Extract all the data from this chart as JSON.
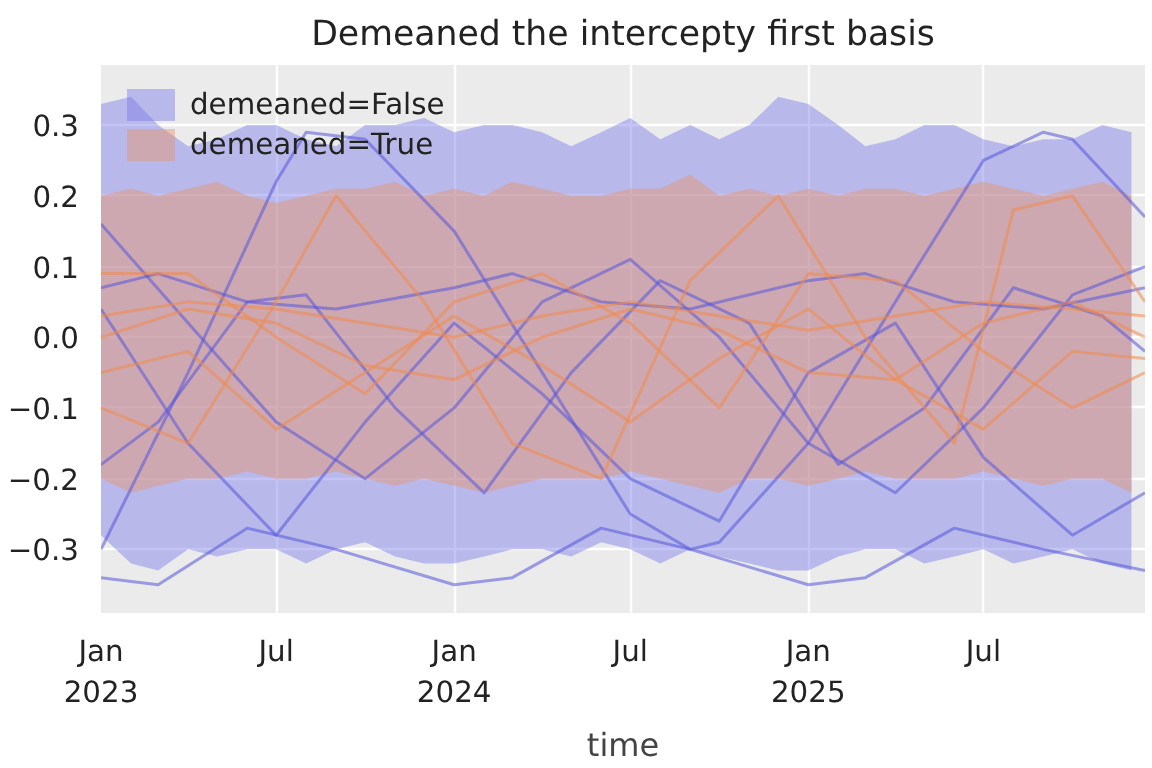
{
  "chart_data": {
    "type": "line",
    "title": "Demeaned the intercepty first basis",
    "xlabel": "time",
    "x": [
      "2023-01",
      "2023-02",
      "2023-03",
      "2023-04",
      "2023-05",
      "2023-06",
      "2023-07",
      "2023-08",
      "2023-09",
      "2023-10",
      "2023-11",
      "2023-12",
      "2024-01",
      "2024-02",
      "2024-03",
      "2024-04",
      "2024-05",
      "2024-06",
      "2024-07",
      "2024-08",
      "2024-09",
      "2024-10",
      "2024-11",
      "2024-12",
      "2025-01",
      "2025-02",
      "2025-03",
      "2025-04",
      "2025-05",
      "2025-06",
      "2025-07",
      "2025-08",
      "2025-09",
      "2025-10",
      "2025-11",
      "2025-12"
    ],
    "xlim": [
      "2023-01-01",
      "2025-12-15"
    ],
    "xticks": [
      {
        "value": "2023-01",
        "label": "Jan\n2023"
      },
      {
        "value": "2023-07",
        "label": "Jul"
      },
      {
        "value": "2024-01",
        "label": "Jan\n2024"
      },
      {
        "value": "2024-07",
        "label": "Jul"
      },
      {
        "value": "2025-01",
        "label": "Jan\n2025"
      },
      {
        "value": "2025-07",
        "label": "Jul"
      }
    ],
    "ylim": [
      -0.39,
      0.385
    ],
    "yticks": [
      -0.3,
      -0.2,
      -0.1,
      {
        "value": 0,
        "label": "0.0"
      },
      0.1,
      0.2,
      0.3
    ],
    "grid": true,
    "legend": "top left",
    "series": [
      {
        "name": "demeaned=False",
        "type": "area",
        "color": "#7b7be8",
        "values": [
          null,
          null,
          null,
          null,
          null,
          null,
          null,
          null,
          null,
          null,
          null,
          null,
          null,
          null,
          null,
          null,
          null,
          null,
          null,
          null,
          null,
          null,
          null,
          null,
          null,
          null,
          null,
          null,
          null,
          null,
          null,
          null,
          null,
          null,
          null,
          null
        ],
        "lower": [
          -0.28,
          -0.32,
          -0.33,
          -0.3,
          -0.31,
          -0.3,
          -0.3,
          -0.32,
          -0.3,
          -0.29,
          -0.31,
          -0.32,
          -0.32,
          -0.31,
          -0.3,
          -0.3,
          -0.31,
          -0.29,
          -0.3,
          -0.32,
          -0.3,
          -0.31,
          -0.32,
          -0.33,
          -0.33,
          -0.31,
          -0.3,
          -0.3,
          -0.32,
          -0.31,
          -0.3,
          -0.32,
          -0.31,
          -0.3,
          -0.32,
          -0.33
        ],
        "upper": [
          0.33,
          0.34,
          0.3,
          0.27,
          0.28,
          0.3,
          0.3,
          0.28,
          0.27,
          0.3,
          0.3,
          0.31,
          0.29,
          0.3,
          0.3,
          0.29,
          0.27,
          0.29,
          0.31,
          0.28,
          0.3,
          0.28,
          0.3,
          0.34,
          0.33,
          0.3,
          0.27,
          0.28,
          0.3,
          0.3,
          0.28,
          0.27,
          0.28,
          0.28,
          0.3,
          0.29
        ]
      },
      {
        "name": "demeaned=True",
        "type": "area",
        "color": "#e8956a",
        "values": [
          null,
          null,
          null,
          null,
          null,
          null,
          null,
          null,
          null,
          null,
          null,
          null,
          null,
          null,
          null,
          null,
          null,
          null,
          null,
          null,
          null,
          null,
          null,
          null,
          null,
          null,
          null,
          null,
          null,
          null,
          null,
          null,
          null,
          null,
          null,
          null
        ],
        "lower": [
          -0.2,
          -0.22,
          -0.21,
          -0.2,
          -0.2,
          -0.19,
          -0.2,
          -0.2,
          -0.19,
          -0.2,
          -0.21,
          -0.2,
          -0.21,
          -0.22,
          -0.21,
          -0.2,
          -0.2,
          -0.2,
          -0.19,
          -0.2,
          -0.21,
          -0.22,
          -0.2,
          -0.2,
          -0.21,
          -0.2,
          -0.19,
          -0.2,
          -0.2,
          -0.2,
          -0.19,
          -0.2,
          -0.21,
          -0.2,
          -0.2,
          -0.22
        ],
        "upper": [
          0.2,
          0.21,
          0.2,
          0.21,
          0.22,
          0.2,
          0.19,
          0.2,
          0.21,
          0.21,
          0.22,
          0.2,
          0.21,
          0.2,
          0.22,
          0.21,
          0.2,
          0.2,
          0.21,
          0.21,
          0.23,
          0.2,
          0.21,
          0.2,
          0.21,
          0.2,
          0.21,
          0.21,
          0.2,
          0.21,
          0.22,
          0.21,
          0.2,
          0.21,
          0.22,
          0.2
        ]
      },
      {
        "color": "#5555dd",
        "x": [
          "2023-01",
          "2023-04",
          "2023-07",
          "2023-08",
          "2023-10",
          "2024-01",
          "2024-04",
          "2024-07",
          "2024-09",
          "2024-10",
          "2025-01",
          "2025-04",
          "2025-07",
          "2025-09",
          "2025-10",
          "2025-12-15"
        ],
        "values": [
          -0.3,
          -0.05,
          0.22,
          0.29,
          0.28,
          0.15,
          -0.05,
          -0.25,
          -0.3,
          -0.29,
          -0.15,
          0.05,
          0.25,
          0.29,
          0.28,
          0.17
        ]
      },
      {
        "color": "#5555dd",
        "x": [
          "2023-01",
          "2023-04",
          "2023-07",
          "2023-10",
          "2024-01",
          "2024-04",
          "2024-07",
          "2024-10",
          "2025-01",
          "2025-04",
          "2025-07",
          "2025-10",
          "2025-12-15"
        ],
        "values": [
          0.16,
          0.02,
          -0.12,
          -0.2,
          -0.1,
          0.05,
          0.11,
          0.0,
          -0.15,
          -0.22,
          -0.1,
          0.06,
          0.1
        ]
      },
      {
        "color": "#5555dd",
        "x": [
          "2023-01",
          "2023-03",
          "2023-06",
          "2023-09",
          "2024-01",
          "2024-03",
          "2024-06",
          "2024-09",
          "2025-01",
          "2025-03",
          "2025-06",
          "2025-09",
          "2025-12-15"
        ],
        "values": [
          0.07,
          0.09,
          0.05,
          0.04,
          0.07,
          0.09,
          0.05,
          0.04,
          0.08,
          0.09,
          0.05,
          0.04,
          0.07
        ]
      },
      {
        "color": "#5555dd",
        "x": [
          "2023-01",
          "2023-03",
          "2023-06",
          "2023-09",
          "2024-01",
          "2024-03",
          "2024-06",
          "2024-09",
          "2025-01",
          "2025-03",
          "2025-06",
          "2025-09",
          "2025-12-15"
        ],
        "values": [
          -0.34,
          -0.35,
          -0.27,
          -0.3,
          -0.35,
          -0.34,
          -0.27,
          -0.3,
          -0.35,
          -0.34,
          -0.27,
          -0.3,
          -0.33
        ]
      },
      {
        "color": "#5555dd",
        "x": [
          "2023-01",
          "2023-03",
          "2023-06",
          "2023-08",
          "2023-11",
          "2024-02",
          "2024-05",
          "2024-08",
          "2024-11",
          "2025-02",
          "2025-05",
          "2025-08",
          "2025-11",
          "2025-12-15"
        ],
        "values": [
          -0.18,
          -0.12,
          0.05,
          0.06,
          -0.1,
          -0.22,
          -0.05,
          0.08,
          0.02,
          -0.18,
          -0.1,
          0.07,
          0.03,
          -0.02
        ]
      },
      {
        "color": "#5555dd",
        "x": [
          "2023-01",
          "2023-04",
          "2023-07",
          "2023-10",
          "2024-01",
          "2024-04",
          "2024-07",
          "2024-10",
          "2025-01",
          "2025-04",
          "2025-07",
          "2025-10",
          "2025-12-15"
        ],
        "values": [
          0.04,
          -0.15,
          -0.28,
          -0.12,
          0.02,
          -0.08,
          -0.2,
          -0.26,
          -0.05,
          0.02,
          -0.17,
          -0.28,
          -0.22
        ]
      },
      {
        "color": "#f08a4b",
        "x": [
          "2023-01",
          "2023-04",
          "2023-07",
          "2023-09",
          "2023-12",
          "2024-03",
          "2024-06",
          "2024-09",
          "2024-12",
          "2025-03",
          "2025-06",
          "2025-08",
          "2025-10",
          "2025-12-15"
        ],
        "values": [
          -0.1,
          -0.15,
          0.05,
          0.2,
          0.05,
          -0.15,
          -0.2,
          0.08,
          0.2,
          0.0,
          -0.15,
          0.18,
          0.2,
          0.05
        ]
      },
      {
        "color": "#f08a4b",
        "x": [
          "2023-01",
          "2023-04",
          "2023-07",
          "2023-10",
          "2024-01",
          "2024-04",
          "2024-07",
          "2024-10",
          "2025-01",
          "2025-04",
          "2025-07",
          "2025-10",
          "2025-12-15"
        ],
        "values": [
          0.03,
          0.05,
          0.04,
          0.02,
          0.0,
          0.03,
          0.05,
          0.03,
          0.01,
          0.03,
          0.05,
          0.04,
          0.03
        ]
      },
      {
        "color": "#f08a4b",
        "x": [
          "2023-01",
          "2023-04",
          "2023-07",
          "2023-10",
          "2024-01",
          "2024-04",
          "2024-07",
          "2024-10",
          "2025-01",
          "2025-04",
          "2025-07",
          "2025-10",
          "2025-12-15"
        ],
        "values": [
          0.09,
          0.09,
          0.0,
          -0.08,
          0.05,
          0.09,
          0.02,
          -0.1,
          0.09,
          0.08,
          -0.02,
          -0.1,
          -0.05
        ]
      },
      {
        "color": "#f08a4b",
        "x": [
          "2023-01",
          "2023-04",
          "2023-07",
          "2023-10",
          "2024-01",
          "2024-04",
          "2024-07",
          "2024-10",
          "2025-01",
          "2025-04",
          "2025-07",
          "2025-10",
          "2025-12-15"
        ],
        "values": [
          -0.05,
          -0.02,
          -0.13,
          -0.05,
          0.03,
          -0.04,
          -0.12,
          -0.03,
          0.04,
          -0.06,
          -0.13,
          -0.02,
          -0.03
        ]
      },
      {
        "color": "#f08a4b",
        "x": [
          "2023-01",
          "2023-04",
          "2023-07",
          "2023-10",
          "2024-01",
          "2024-04",
          "2024-07",
          "2024-10",
          "2025-01",
          "2025-04",
          "2025-07",
          "2025-10",
          "2025-12-15"
        ],
        "values": [
          0.0,
          0.04,
          0.02,
          -0.04,
          -0.06,
          0.0,
          0.04,
          0.01,
          -0.05,
          -0.06,
          0.02,
          0.05,
          0.0
        ]
      }
    ]
  }
}
